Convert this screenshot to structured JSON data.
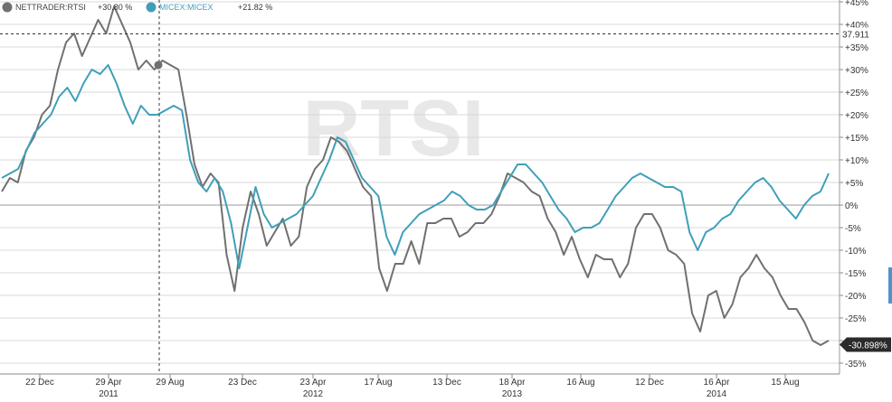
{
  "chart_data": {
    "type": "line",
    "watermark": "RTSI",
    "legend": [
      {
        "name": "NETTRADER:RTSI",
        "change": "+30.80 %",
        "color": "#707070"
      },
      {
        "name": "MICEX:MICEX",
        "change": "+21.82 %",
        "color": "#3f9fb8"
      }
    ],
    "y_unit": "%",
    "ylim": [
      -36,
      46
    ],
    "y_ticks": [
      "+45%",
      "+40%",
      "+35%",
      "+30%",
      "+25%",
      "+20%",
      "+15%",
      "+10%",
      "+5%",
      "0%",
      "-5%",
      "-10%",
      "-15%",
      "-20%",
      "-25%",
      "-30%",
      "-35%"
    ],
    "x_tick_labels": [
      {
        "label": "22 Dec",
        "year": ""
      },
      {
        "label": "29 Apr",
        "year": "2011"
      },
      {
        "label": "29 Aug",
        "year": ""
      },
      {
        "label": "23 Dec",
        "year": ""
      },
      {
        "label": "23 Apr",
        "year": "2012"
      },
      {
        "label": "17 Aug",
        "year": ""
      },
      {
        "label": "13 Dec",
        "year": ""
      },
      {
        "label": "18 Apr",
        "year": "2013"
      },
      {
        "label": "16 Aug",
        "year": ""
      },
      {
        "label": "12 Dec",
        "year": ""
      },
      {
        "label": "16 Apr",
        "year": "2014"
      },
      {
        "label": "15 Aug",
        "year": ""
      }
    ],
    "crosshair_value": "37.911",
    "last_value_label": "-30.898%",
    "series": [
      {
        "name": "NETTRADER:RTSI",
        "color": "#707070",
        "values": [
          3,
          6,
          5,
          12,
          15,
          20,
          22,
          30,
          36,
          38,
          33,
          37,
          41,
          38,
          44,
          40,
          36,
          30,
          32,
          30,
          32,
          31,
          30,
          20,
          9,
          4,
          7,
          5,
          -11,
          -19,
          -5,
          3,
          -2,
          -9,
          -6,
          -3,
          -9,
          -7,
          4,
          8,
          10,
          15,
          14,
          12,
          8,
          4,
          2,
          -14,
          -19,
          -13,
          -13,
          -8,
          -13,
          -4,
          -4,
          -3,
          -3,
          -7,
          -6,
          -4,
          -4,
          -2,
          2,
          7,
          6,
          5,
          3,
          2,
          -3,
          -6,
          -11,
          -7,
          -12,
          -16,
          -11,
          -12,
          -12,
          -16,
          -13,
          -5,
          -2,
          -2,
          -5,
          -10,
          -11,
          -13,
          -24,
          -28,
          -20,
          -19,
          -25,
          -22,
          -16,
          -14,
          -11,
          -14,
          -16,
          -20,
          -23,
          -23,
          -26,
          -30,
          -31,
          -30
        ]
      },
      {
        "name": "MICEX:MICEX",
        "color": "#3f9fb8",
        "values": [
          6,
          7,
          8,
          12,
          16,
          18,
          20,
          24,
          26,
          23,
          27,
          30,
          29,
          31,
          27,
          22,
          18,
          22,
          20,
          20,
          21,
          22,
          21,
          10,
          5,
          3,
          6,
          3,
          -4,
          -14,
          -5,
          4,
          -2,
          -5,
          -4,
          -3,
          -2,
          0,
          2,
          6,
          10,
          15,
          14,
          10,
          6,
          4,
          2,
          -7,
          -11,
          -6,
          -4,
          -2,
          -1,
          0,
          1,
          3,
          2,
          0,
          -1,
          -1,
          0,
          3,
          6,
          9,
          9,
          7,
          5,
          2,
          -1,
          -3,
          -6,
          -5,
          -5,
          -4,
          -1,
          2,
          4,
          6,
          7,
          6,
          5,
          4,
          4,
          3,
          -6,
          -10,
          -6,
          -5,
          -3,
          -2,
          1,
          3,
          5,
          6,
          4,
          1,
          -1,
          -3,
          0,
          2,
          3,
          7
        ]
      }
    ]
  }
}
